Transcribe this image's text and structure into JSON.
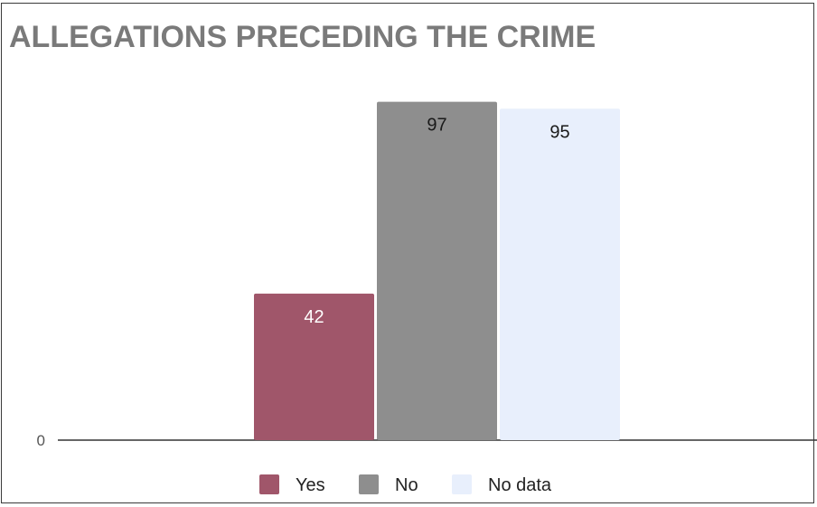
{
  "chart_data": {
    "type": "bar",
    "title": "ALLEGATIONS PRECEDING THE CRIME",
    "xlabel": "",
    "ylabel": "",
    "y_tick_labels": [
      "0"
    ],
    "ylim": [
      0,
      100
    ],
    "grid": false,
    "legend_position": "bottom",
    "series": [
      {
        "name": "Yes",
        "values": [
          42
        ],
        "data_labels": [
          "42"
        ],
        "color": "#a0566a",
        "label_color": "#ffffff"
      },
      {
        "name": "No",
        "values": [
          97
        ],
        "data_labels": [
          "97"
        ],
        "color": "#8e8e8e",
        "label_color": "#1a1a1a"
      },
      {
        "name": "No data",
        "values": [
          95
        ],
        "data_labels": [
          "95"
        ],
        "color": "#e8effc",
        "label_color": "#1a1a1a"
      }
    ]
  }
}
